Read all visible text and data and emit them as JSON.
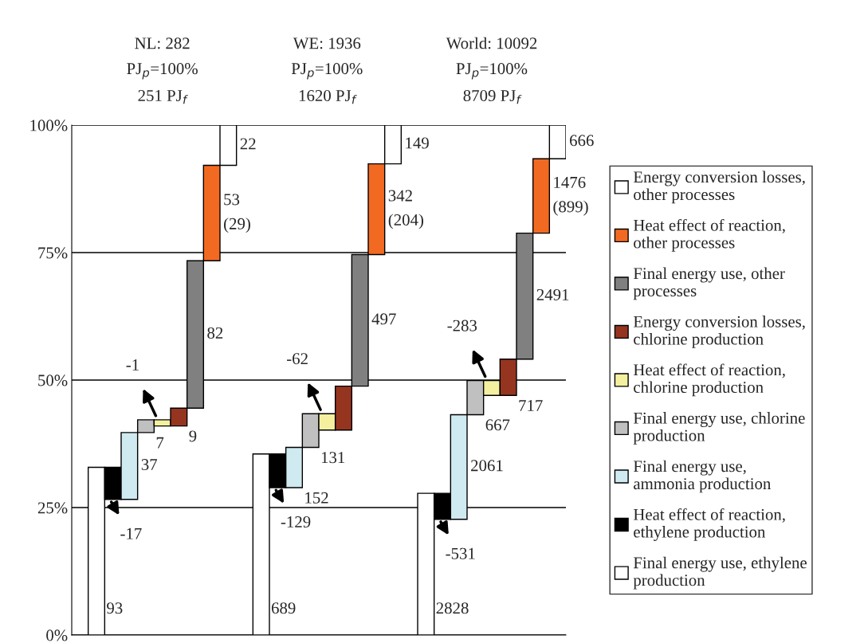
{
  "chart_data": {
    "type": "bar",
    "categories": [
      null,
      null,
      null,
      null,
      null,
      null,
      null,
      null,
      null,
      null,
      null,
      null,
      null,
      null,
      null,
      null,
      null,
      null,
      null,
      null,
      null,
      null,
      null,
      null,
      null,
      null,
      null,
      null,
      null,
      null
    ],
    "series": [
      {
        "name": "Final energy use, ethylene\nproduction",
        "color": "#ffffff",
        "values": [
          null,
          32.9,
          null,
          null,
          null,
          null,
          null,
          null,
          null,
          null,
          null,
          35.5,
          null,
          null,
          null,
          null,
          null,
          null,
          null,
          null,
          null,
          27.8,
          null,
          null,
          null,
          null,
          null,
          null,
          null,
          null
        ],
        "base": [
          null,
          0,
          null,
          null,
          null,
          null,
          null,
          null,
          null,
          null,
          null,
          0,
          null,
          null,
          null,
          null,
          null,
          null,
          null,
          null,
          null,
          0,
          null,
          null,
          null,
          null,
          null,
          null,
          null,
          null
        ]
      },
      {
        "name": "Heat effect of reaction,\nethylene production",
        "color": "#000000",
        "values": [
          null,
          null,
          -6.3,
          null,
          null,
          null,
          null,
          null,
          null,
          null,
          null,
          null,
          -6.6,
          null,
          null,
          null,
          null,
          null,
          null,
          null,
          null,
          null,
          -5.1,
          null,
          null,
          null,
          null,
          null,
          null,
          null
        ],
        "base": [
          null,
          null,
          32.9,
          null,
          null,
          null,
          null,
          null,
          null,
          null,
          null,
          null,
          35.5,
          null,
          null,
          null,
          null,
          null,
          null,
          null,
          null,
          null,
          27.8,
          null,
          null,
          null,
          null,
          null,
          null,
          null
        ]
      },
      {
        "name": "Final energy use,\nammonia production",
        "color": "#cfeaf0",
        "values": [
          null,
          null,
          null,
          13.1,
          null,
          null,
          null,
          null,
          null,
          null,
          null,
          null,
          null,
          7.9,
          null,
          null,
          null,
          null,
          null,
          null,
          null,
          null,
          null,
          20.5,
          null,
          null,
          null,
          null,
          null,
          null
        ],
        "base": [
          null,
          null,
          null,
          26.6,
          null,
          null,
          null,
          null,
          null,
          null,
          null,
          null,
          null,
          28.9,
          null,
          null,
          null,
          null,
          null,
          null,
          null,
          null,
          null,
          22.7,
          null,
          null,
          null,
          null,
          null,
          null
        ]
      },
      {
        "name": "Final energy use, chlorine\nproduction",
        "color": "#c0c0c0",
        "values": [
          null,
          null,
          null,
          null,
          2.5,
          null,
          null,
          null,
          null,
          null,
          null,
          null,
          null,
          null,
          6.6,
          null,
          null,
          null,
          null,
          null,
          null,
          null,
          null,
          null,
          6.7,
          null,
          null,
          null,
          null,
          null
        ],
        "base": [
          null,
          null,
          null,
          null,
          39.7,
          null,
          null,
          null,
          null,
          null,
          null,
          null,
          null,
          null,
          36.8,
          null,
          null,
          null,
          null,
          null,
          null,
          null,
          null,
          null,
          43.2,
          null,
          null,
          null,
          null,
          null
        ]
      },
      {
        "name": "Heat effect of reaction,\nchlorine production",
        "color": "#f5f0a0",
        "values": [
          null,
          null,
          null,
          null,
          null,
          -1.2,
          null,
          null,
          null,
          null,
          null,
          null,
          null,
          null,
          null,
          -3.2,
          null,
          null,
          null,
          null,
          null,
          null,
          null,
          null,
          null,
          -2.9,
          null,
          null,
          null,
          null
        ],
        "base": [
          null,
          null,
          null,
          null,
          null,
          42.2,
          null,
          null,
          null,
          null,
          null,
          null,
          null,
          null,
          null,
          43.4,
          null,
          null,
          null,
          null,
          null,
          null,
          null,
          null,
          null,
          49.9,
          null,
          null,
          null,
          null
        ]
      },
      {
        "name": "Energy conversion losses,\nchlorine production",
        "color": "#953520",
        "values": [
          null,
          null,
          null,
          null,
          null,
          null,
          3.5,
          null,
          null,
          null,
          null,
          null,
          null,
          null,
          null,
          null,
          8.6,
          null,
          null,
          null,
          null,
          null,
          null,
          null,
          null,
          null,
          7.1,
          null,
          null,
          null
        ],
        "base": [
          null,
          null,
          null,
          null,
          null,
          null,
          41.0,
          null,
          null,
          null,
          null,
          null,
          null,
          null,
          null,
          null,
          40.2,
          null,
          null,
          null,
          null,
          null,
          null,
          null,
          null,
          null,
          47.0,
          null,
          null,
          null
        ]
      },
      {
        "name": "Final energy use, other\nprocesses",
        "color": "#808080",
        "values": [
          null,
          null,
          null,
          null,
          null,
          null,
          null,
          28.9,
          null,
          null,
          null,
          null,
          null,
          null,
          null,
          null,
          null,
          25.8,
          null,
          null,
          null,
          null,
          null,
          null,
          null,
          null,
          null,
          24.7,
          null,
          null
        ],
        "base": [
          null,
          null,
          null,
          null,
          null,
          null,
          null,
          44.5,
          null,
          null,
          null,
          null,
          null,
          null,
          null,
          null,
          null,
          48.8,
          null,
          null,
          null,
          null,
          null,
          null,
          null,
          null,
          null,
          54.1,
          null,
          null
        ]
      },
      {
        "name": "Heat effect of reaction,\nother processes",
        "color": "#f26a21",
        "values": [
          null,
          null,
          null,
          null,
          null,
          null,
          null,
          null,
          18.7,
          null,
          null,
          null,
          null,
          null,
          null,
          null,
          null,
          null,
          17.8,
          null,
          null,
          null,
          null,
          null,
          null,
          null,
          null,
          null,
          14.6,
          null
        ],
        "base": [
          null,
          null,
          null,
          null,
          null,
          null,
          null,
          null,
          73.4,
          null,
          null,
          null,
          null,
          null,
          null,
          null,
          null,
          null,
          74.6,
          null,
          null,
          null,
          null,
          null,
          null,
          null,
          null,
          null,
          78.8,
          null
        ]
      },
      {
        "name": "Energy conversion losses,\nother processes",
        "color": "#ffffff",
        "values": [
          null,
          null,
          null,
          null,
          null,
          null,
          null,
          null,
          null,
          7.9,
          null,
          null,
          null,
          null,
          null,
          null,
          null,
          null,
          null,
          7.6,
          null,
          null,
          null,
          null,
          null,
          null,
          null,
          null,
          null,
          6.6
        ],
        "base": [
          null,
          null,
          null,
          null,
          null,
          null,
          null,
          null,
          null,
          92.1,
          null,
          null,
          null,
          null,
          null,
          null,
          null,
          null,
          null,
          92.4,
          null,
          null,
          null,
          null,
          null,
          null,
          null,
          null,
          null,
          93.4
        ]
      }
    ],
    "annotations": [
      "NL: 282\nPJ$_{p}$=100%\n251 PJ$_{f}$",
      "WE: 1936\nPJ$_{p}$=100%\n1620 PJ$_{f}$",
      "World: 10092\nPJ$_{p}$=100%\n8709 PJ$_{f}$",
      "93",
      "-17",
      "37",
      "7",
      "-1",
      "9",
      "82",
      "53\n(29)",
      "22",
      "689",
      "-129",
      "152",
      "131",
      "-62",
      null,
      "497",
      "342\n(204)",
      "149",
      "2828",
      "-531",
      "2061",
      "667",
      "-283",
      "717",
      "2491",
      "1476\n(899)",
      "666"
    ],
    "ylim": [
      0,
      100
    ],
    "yticks": [
      {
        "value": 0,
        "label": "0%"
      },
      {
        "value": 25,
        "label": "25%"
      },
      {
        "value": 50,
        "label": "50%"
      },
      {
        "value": 75,
        "label": "75%"
      },
      {
        "value": 100,
        "label": "100%"
      }
    ],
    "grid": "y",
    "tick_labels": "y",
    "legend": "right"
  }
}
